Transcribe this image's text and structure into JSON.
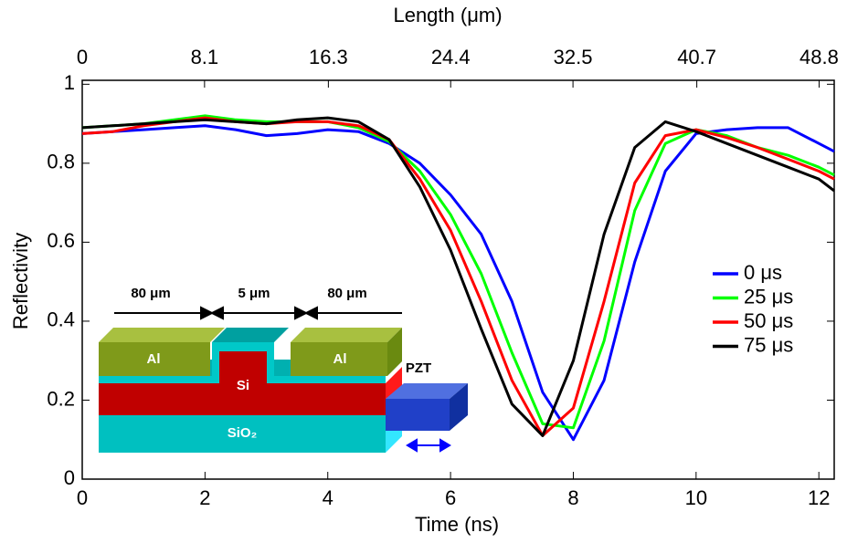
{
  "chart_data": {
    "type": "line",
    "xlabel": "Time (ns)",
    "x2label": "Length (μm)",
    "ylabel": "Reflectivity",
    "x": [
      0,
      0.5,
      1,
      1.5,
      2,
      2.5,
      3,
      3.5,
      4,
      4.5,
      5,
      5.5,
      6,
      6.5,
      7,
      7.5,
      8,
      8.5,
      9,
      9.5,
      10,
      10.5,
      11,
      11.5,
      12,
      12.25
    ],
    "series": [
      {
        "name": "0 μs",
        "color": "#0000ff",
        "values": [
          0.875,
          0.88,
          0.885,
          0.89,
          0.895,
          0.885,
          0.87,
          0.875,
          0.885,
          0.88,
          0.85,
          0.8,
          0.72,
          0.62,
          0.45,
          0.22,
          0.1,
          0.25,
          0.55,
          0.78,
          0.875,
          0.885,
          0.89,
          0.89,
          0.85,
          0.83
        ]
      },
      {
        "name": "25 μs",
        "color": "#00ff00",
        "values": [
          0.89,
          0.895,
          0.9,
          0.91,
          0.92,
          0.91,
          0.905,
          0.905,
          0.905,
          0.89,
          0.855,
          0.78,
          0.67,
          0.52,
          0.32,
          0.14,
          0.13,
          0.35,
          0.68,
          0.85,
          0.885,
          0.87,
          0.84,
          0.82,
          0.79,
          0.77
        ]
      },
      {
        "name": "50 μs",
        "color": "#ff0000",
        "values": [
          0.875,
          0.88,
          0.895,
          0.905,
          0.915,
          0.905,
          0.9,
          0.905,
          0.905,
          0.895,
          0.86,
          0.76,
          0.63,
          0.45,
          0.25,
          0.11,
          0.18,
          0.45,
          0.75,
          0.87,
          0.885,
          0.865,
          0.84,
          0.81,
          0.78,
          0.76
        ]
      },
      {
        "name": "75 μs",
        "color": "#000000",
        "values": [
          0.89,
          0.895,
          0.9,
          0.905,
          0.91,
          0.905,
          0.9,
          0.91,
          0.915,
          0.905,
          0.86,
          0.74,
          0.58,
          0.38,
          0.19,
          0.11,
          0.3,
          0.62,
          0.84,
          0.905,
          0.88,
          0.85,
          0.82,
          0.79,
          0.76,
          0.73
        ]
      }
    ],
    "xlim": [
      0,
      12.25
    ],
    "xticks": [
      0,
      2,
      4,
      6,
      8,
      10,
      12
    ],
    "x2lim": [
      0,
      49.8
    ],
    "x2ticks": [
      0,
      8.1,
      16.3,
      24.4,
      32.5,
      40.7,
      48.8
    ],
    "ylim": [
      0,
      1.01
    ],
    "yticks": [
      0,
      0.2,
      0.4,
      0.6,
      0.8,
      1
    ],
    "legend": "right",
    "inset": {
      "labels": [
        "80 μm",
        "5 μm",
        "80 μm",
        "Al",
        "Al",
        "Si",
        "SiO₂",
        "PZT"
      ]
    }
  }
}
